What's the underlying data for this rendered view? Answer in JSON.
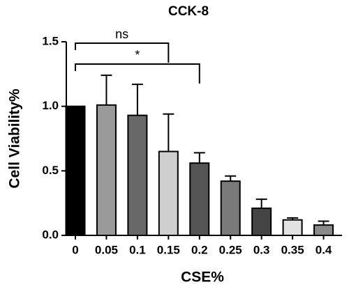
{
  "chart_data": {
    "type": "bar",
    "title": "CCK-8",
    "x_label": "CSE%",
    "y_label": "Cell Viability%",
    "categories": [
      "0",
      "0.05",
      "0.1",
      "0.15",
      "0.2",
      "0.25",
      "0.3",
      "0.35",
      "0.4"
    ],
    "values": [
      1.0,
      1.01,
      0.93,
      0.65,
      0.56,
      0.42,
      0.21,
      0.12,
      0.08
    ],
    "errors": [
      0,
      0.23,
      0.24,
      0.29,
      0.08,
      0.04,
      0.07,
      0.015,
      0.03
    ],
    "colors": [
      "#000000",
      "#9a9a9a",
      "#686868",
      "#cfcfcf",
      "#555555",
      "#7a7a7a",
      "#444444",
      "#e2e2e2",
      "#8a8a8a"
    ],
    "ylim": [
      0,
      1.5
    ],
    "yticks": [
      {
        "value": 0,
        "label": "0.0"
      },
      0.5,
      {
        "value": 1,
        "label": "1.0"
      },
      {
        "value": 1.5,
        "label": "1.5"
      }
    ],
    "annotations": [
      {
        "text": "ns",
        "from": 0,
        "to": 3
      },
      {
        "text": "*",
        "from": 0,
        "to": 4
      }
    ]
  }
}
